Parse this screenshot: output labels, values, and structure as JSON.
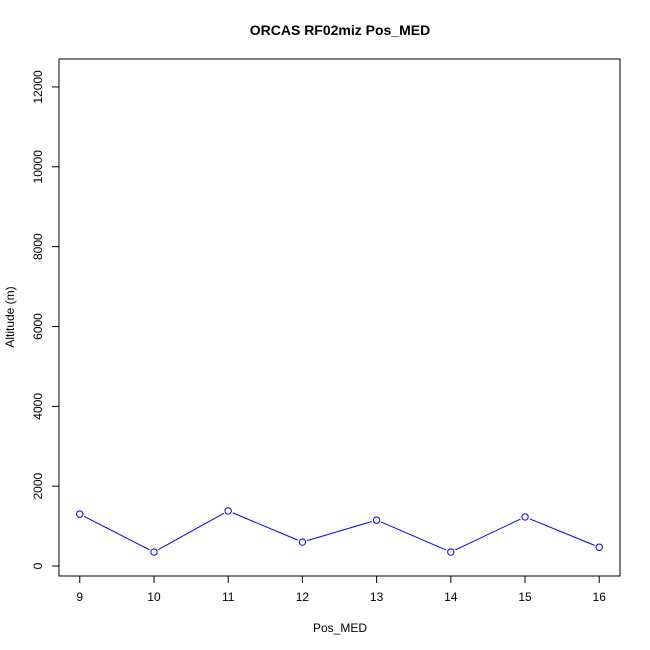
{
  "chart_data": {
    "type": "line",
    "title": "ORCAS RF02miz Pos_MED",
    "xlabel": "Pos_MED",
    "ylabel": "Altitude (m)",
    "x_ticks": [
      9,
      10,
      11,
      12,
      13,
      14,
      15,
      16
    ],
    "y_ticks": [
      0,
      2000,
      4000,
      6000,
      8000,
      10000,
      12000
    ],
    "xlim": [
      8.72,
      16.28
    ],
    "ylim": [
      -250,
      12700
    ],
    "grid": false,
    "series": [
      {
        "color": "#0000ff",
        "x": [
          9,
          10,
          11,
          12,
          13,
          14,
          15,
          16
        ],
        "y": [
          1300,
          350,
          1380,
          600,
          1150,
          350,
          1230,
          470
        ]
      }
    ]
  }
}
